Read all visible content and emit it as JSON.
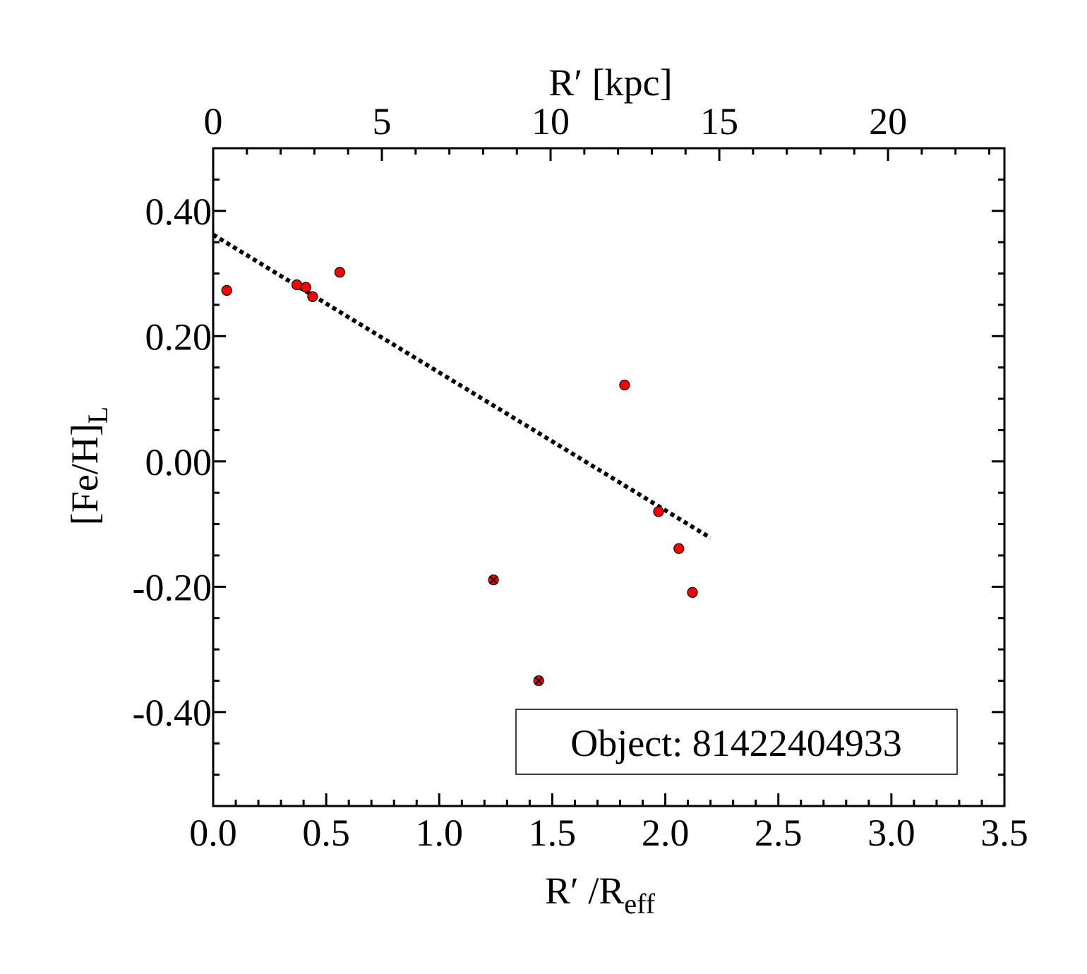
{
  "chart_data": {
    "type": "scatter",
    "title": "",
    "xlabel": {
      "main": "R′ /R",
      "subscript": "eff"
    },
    "x2label": "R′ [kpc]",
    "ylabel": {
      "main": "[Fe/H]",
      "subscript": "L"
    },
    "xlim": [
      0.0,
      3.5
    ],
    "x2lim": [
      0,
      23.45
    ],
    "ylim": [
      -0.55,
      0.5
    ],
    "x_ticks": [
      "0.0",
      "0.5",
      "1.0",
      "1.5",
      "2.0",
      "2.5",
      "3.0",
      "3.5"
    ],
    "x2_ticks": [
      "0",
      "5",
      "10",
      "15",
      "20"
    ],
    "y_ticks": [
      "0.40",
      "0.20",
      "0.00",
      "-0.20",
      "-0.40"
    ],
    "grid": false,
    "colors": {
      "marker_fill": "#ff0000",
      "marker_edge": "#000000",
      "fit_line": "#000000"
    },
    "series": [
      {
        "marker": "circle",
        "x": [
          0.06,
          0.37,
          0.41,
          0.44,
          0.56,
          1.82,
          1.97,
          2.06,
          2.12
        ],
        "y": [
          0.273,
          0.282,
          0.278,
          0.263,
          0.302,
          0.122,
          -0.08,
          -0.139,
          -0.209
        ]
      },
      {
        "marker": "circle-cross",
        "x": [
          1.24,
          1.44
        ],
        "y": [
          -0.189,
          -0.35
        ]
      }
    ],
    "fit_line": {
      "style": "dotted",
      "x": [
        0.0,
        2.2
      ],
      "y": [
        0.362,
        -0.122
      ]
    },
    "annotation": "Object: 81422404933"
  }
}
